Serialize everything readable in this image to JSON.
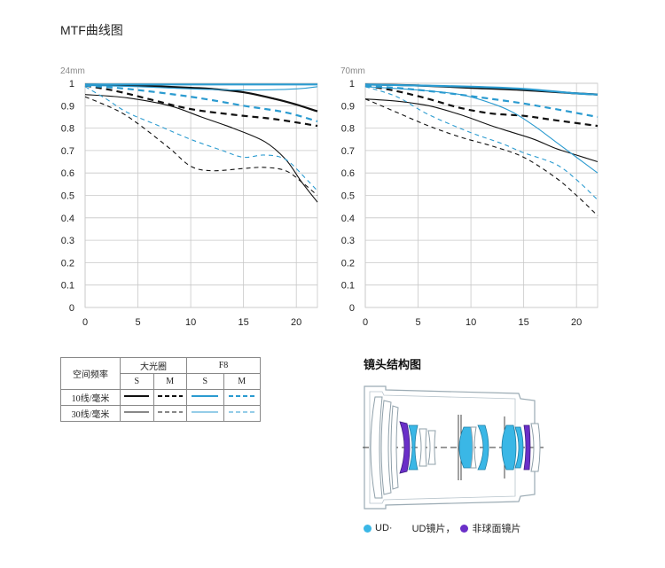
{
  "page": {
    "title": "MTF曲线图"
  },
  "chart_data": [
    {
      "type": "line",
      "title": "24mm",
      "xlim": [
        0,
        22
      ],
      "ylim": [
        0,
        1
      ],
      "xticks": [
        0,
        5,
        10,
        15,
        20
      ],
      "yticks": [
        "0",
        "0.1",
        "0.2",
        "0.3",
        "0.4",
        "0.5",
        "0.6",
        "0.7",
        "0.8",
        "0.9",
        "1"
      ],
      "grid": true,
      "series": [
        {
          "name": "大光圈 10线/毫米 S",
          "color": "#111111",
          "dash": "solid",
          "width": 2.2,
          "x": [
            0,
            5,
            10,
            12,
            15,
            18,
            20,
            22
          ],
          "y": [
            0.995,
            0.99,
            0.98,
            0.975,
            0.96,
            0.93,
            0.905,
            0.875
          ]
        },
        {
          "name": "大光圈 10线/毫米 M",
          "color": "#111111",
          "dash": "dashed",
          "width": 2.2,
          "x": [
            0,
            3,
            6,
            10,
            14,
            18,
            22
          ],
          "y": [
            0.99,
            0.965,
            0.93,
            0.885,
            0.86,
            0.84,
            0.81
          ]
        },
        {
          "name": "大光圈 30线/毫米 S",
          "color": "#111111",
          "dash": "solid",
          "width": 1.1,
          "x": [
            0,
            4,
            8,
            11,
            14,
            17,
            19,
            20.5,
            22
          ],
          "y": [
            0.95,
            0.935,
            0.9,
            0.85,
            0.8,
            0.74,
            0.66,
            0.56,
            0.47
          ]
        },
        {
          "name": "大光圈 30线/毫米 M",
          "color": "#111111",
          "dash": "dashed",
          "width": 1.1,
          "x": [
            0,
            3,
            5,
            8,
            10,
            12,
            15,
            17,
            19,
            20.5,
            22
          ],
          "y": [
            0.94,
            0.88,
            0.82,
            0.71,
            0.63,
            0.61,
            0.62,
            0.625,
            0.61,
            0.56,
            0.5
          ]
        },
        {
          "name": "F8 10线/毫米 S",
          "color": "#2b9bd0",
          "dash": "solid",
          "width": 2.2,
          "x": [
            0,
            11,
            22
          ],
          "y": [
            0.995,
            0.995,
            0.995
          ]
        },
        {
          "name": "F8 10线/毫米 M",
          "color": "#2b9bd0",
          "dash": "dashed",
          "width": 2.2,
          "x": [
            0,
            4,
            10,
            15,
            19,
            22
          ],
          "y": [
            0.99,
            0.975,
            0.94,
            0.9,
            0.87,
            0.83
          ]
        },
        {
          "name": "F8 30线/毫米 S",
          "color": "#2b9bd0",
          "dash": "solid",
          "width": 1.1,
          "x": [
            0,
            5,
            10,
            15,
            20,
            22
          ],
          "y": [
            0.99,
            0.985,
            0.975,
            0.97,
            0.975,
            0.985
          ]
        },
        {
          "name": "F8 30线/毫米 M",
          "color": "#2b9bd0",
          "dash": "dashed",
          "width": 1.1,
          "x": [
            0,
            2,
            4,
            7,
            10,
            13,
            15,
            17,
            19,
            21,
            22
          ],
          "y": [
            0.985,
            0.93,
            0.87,
            0.81,
            0.75,
            0.7,
            0.67,
            0.68,
            0.66,
            0.57,
            0.52
          ]
        }
      ]
    },
    {
      "type": "line",
      "title": "70mm",
      "xlim": [
        0,
        22
      ],
      "ylim": [
        0,
        1
      ],
      "xticks": [
        0,
        5,
        10,
        15,
        20
      ],
      "yticks": [
        "0",
        "0.1",
        "0.2",
        "0.3",
        "0.4",
        "0.5",
        "0.6",
        "0.7",
        "0.8",
        "0.9",
        "1"
      ],
      "grid": true,
      "series": [
        {
          "name": "大光圈 10线/毫米 S",
          "color": "#111111",
          "dash": "solid",
          "width": 2.2,
          "x": [
            0,
            5,
            10,
            15,
            20,
            22
          ],
          "y": [
            0.995,
            0.99,
            0.98,
            0.97,
            0.955,
            0.95
          ]
        },
        {
          "name": "大光圈 10线/毫米 M",
          "color": "#111111",
          "dash": "dashed",
          "width": 2.2,
          "x": [
            0,
            3,
            6,
            9,
            12,
            15,
            18,
            22
          ],
          "y": [
            0.99,
            0.965,
            0.93,
            0.89,
            0.865,
            0.855,
            0.835,
            0.81
          ]
        },
        {
          "name": "大光圈 30线/毫米 S",
          "color": "#111111",
          "dash": "solid",
          "width": 1.1,
          "x": [
            0,
            3,
            6,
            9,
            12,
            14,
            16,
            18,
            20,
            22
          ],
          "y": [
            0.93,
            0.92,
            0.9,
            0.86,
            0.81,
            0.78,
            0.75,
            0.71,
            0.68,
            0.65
          ]
        },
        {
          "name": "大光圈 30线/毫米 M",
          "color": "#111111",
          "dash": "dashed",
          "width": 1.1,
          "x": [
            0,
            3,
            6,
            9,
            12,
            15,
            18,
            20,
            22
          ],
          "y": [
            0.93,
            0.87,
            0.81,
            0.76,
            0.72,
            0.67,
            0.58,
            0.5,
            0.41
          ]
        },
        {
          "name": "F8 10线/毫米 S",
          "color": "#2b9bd0",
          "dash": "solid",
          "width": 2.2,
          "x": [
            0,
            5,
            10,
            15,
            20,
            22
          ],
          "y": [
            0.995,
            0.99,
            0.985,
            0.975,
            0.955,
            0.95
          ]
        },
        {
          "name": "F8 10线/毫米 M",
          "color": "#2b9bd0",
          "dash": "dashed",
          "width": 2.2,
          "x": [
            0,
            4,
            8,
            12,
            15,
            18,
            22
          ],
          "y": [
            0.99,
            0.975,
            0.955,
            0.93,
            0.91,
            0.885,
            0.85
          ]
        },
        {
          "name": "F8 30线/毫米 S",
          "color": "#2b9bd0",
          "dash": "solid",
          "width": 1.1,
          "x": [
            0,
            5,
            9,
            12,
            14,
            16,
            18,
            20,
            22
          ],
          "y": [
            0.985,
            0.97,
            0.95,
            0.91,
            0.87,
            0.81,
            0.74,
            0.67,
            0.6
          ]
        },
        {
          "name": "F8 30线/毫米 M",
          "color": "#2b9bd0",
          "dash": "dashed",
          "width": 1.1,
          "x": [
            0,
            3,
            6,
            10,
            13,
            15,
            18,
            20,
            22
          ],
          "y": [
            0.985,
            0.94,
            0.86,
            0.78,
            0.73,
            0.69,
            0.64,
            0.57,
            0.48
          ]
        }
      ]
    }
  ],
  "legend_table": {
    "header_col": "空间频率",
    "group_wide": "大光圈",
    "group_f8": "F8",
    "sub_s": "S",
    "sub_m": "M",
    "row_10": "10线/毫米",
    "row_30": "30线/毫米"
  },
  "lens": {
    "title": "镜头结构图",
    "colors": {
      "ud": "#3ab7e6",
      "aspherical": "#6a2fc8",
      "outline": "#9aaab3"
    },
    "legend": {
      "ud": "UD·",
      "ud_lens": "UD镜片，",
      "aspherical": "非球面镜片"
    }
  }
}
